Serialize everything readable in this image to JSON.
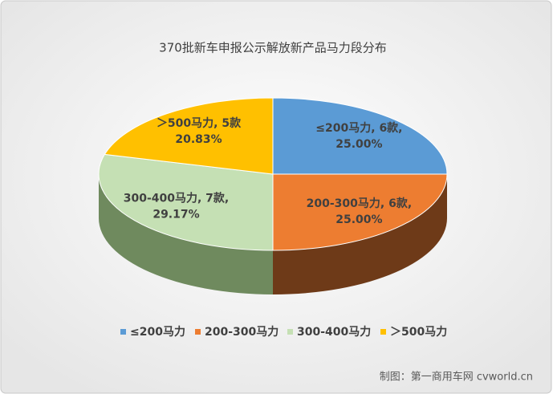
{
  "chart_data": {
    "type": "pie3d",
    "title": "370批新车申报公示解放新产品马力段分布",
    "categories": [
      "≤200马力",
      "200-300马力",
      "300-400马力",
      "＞500马力"
    ],
    "values": [
      6,
      6,
      7,
      5
    ],
    "data_labels": [
      [
        "≤200马力, 6款,",
        "25.00%"
      ],
      [
        "200-300马力, 6款,",
        "25.00%"
      ],
      [
        "300-400马力, 7款,",
        "29.17%"
      ],
      [
        "＞500马力, 5款",
        "20.83%"
      ]
    ],
    "colors": [
      "#5b9bd5",
      "#ed7d31",
      "#c5e0b4",
      "#ffc000"
    ],
    "side_colors": [
      "#3a6fa0",
      "#6e3a18",
      "#6f8a5e",
      "#a07a00"
    ],
    "legend": "bottom",
    "source": "制图：第一商用车网 cvworld.cn"
  }
}
